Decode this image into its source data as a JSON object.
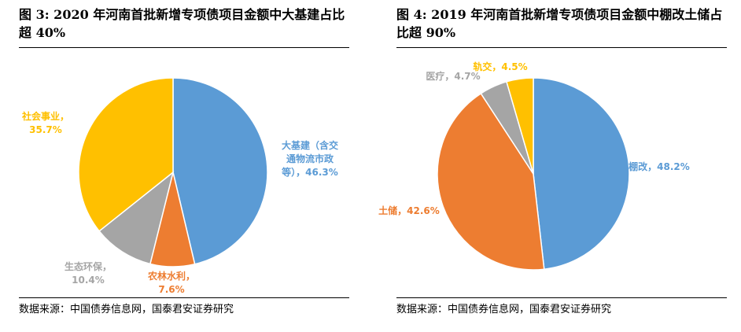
{
  "chart_data": [
    {
      "type": "pie",
      "title": "图 3:  2020 年河南首批新增专项债项目金额中大基建占比超 40%",
      "source": "数据来源：中国债券信息网，国泰君安证券研究",
      "start_angle_deg": 0,
      "slices": [
        {
          "label_lines": [
            "大基建（含交",
            "通物流市政",
            "等），46.3%"
          ],
          "value": 46.3,
          "color": "#5B9BD5"
        },
        {
          "label_lines": [
            "农林水利，",
            "7.6%"
          ],
          "value": 7.6,
          "color": "#ED7D31"
        },
        {
          "label_lines": [
            "生态环保，",
            "10.4%"
          ],
          "value": 10.4,
          "color": "#A5A5A5"
        },
        {
          "label_lines": [
            "社会事业，",
            "35.7%"
          ],
          "value": 35.7,
          "color": "#FFC000"
        }
      ]
    },
    {
      "type": "pie",
      "title": "图 4:  2019 年河南首批新增专项债项目金额中棚改土储占比超 90%",
      "source": "数据来源：中国债券信息网，国泰君安证券研究",
      "start_angle_deg": 0,
      "slices": [
        {
          "label_lines": [
            "棚改，48.2%"
          ],
          "value": 48.2,
          "color": "#5B9BD5"
        },
        {
          "label_lines": [
            "土储，42.6%"
          ],
          "value": 42.6,
          "color": "#ED7D31"
        },
        {
          "label_lines": [
            "医疗，4.7%"
          ],
          "value": 4.7,
          "color": "#A5A5A5"
        },
        {
          "label_lines": [
            "轨交，4.5%"
          ],
          "value": 4.5,
          "color": "#FFC000"
        }
      ]
    }
  ]
}
